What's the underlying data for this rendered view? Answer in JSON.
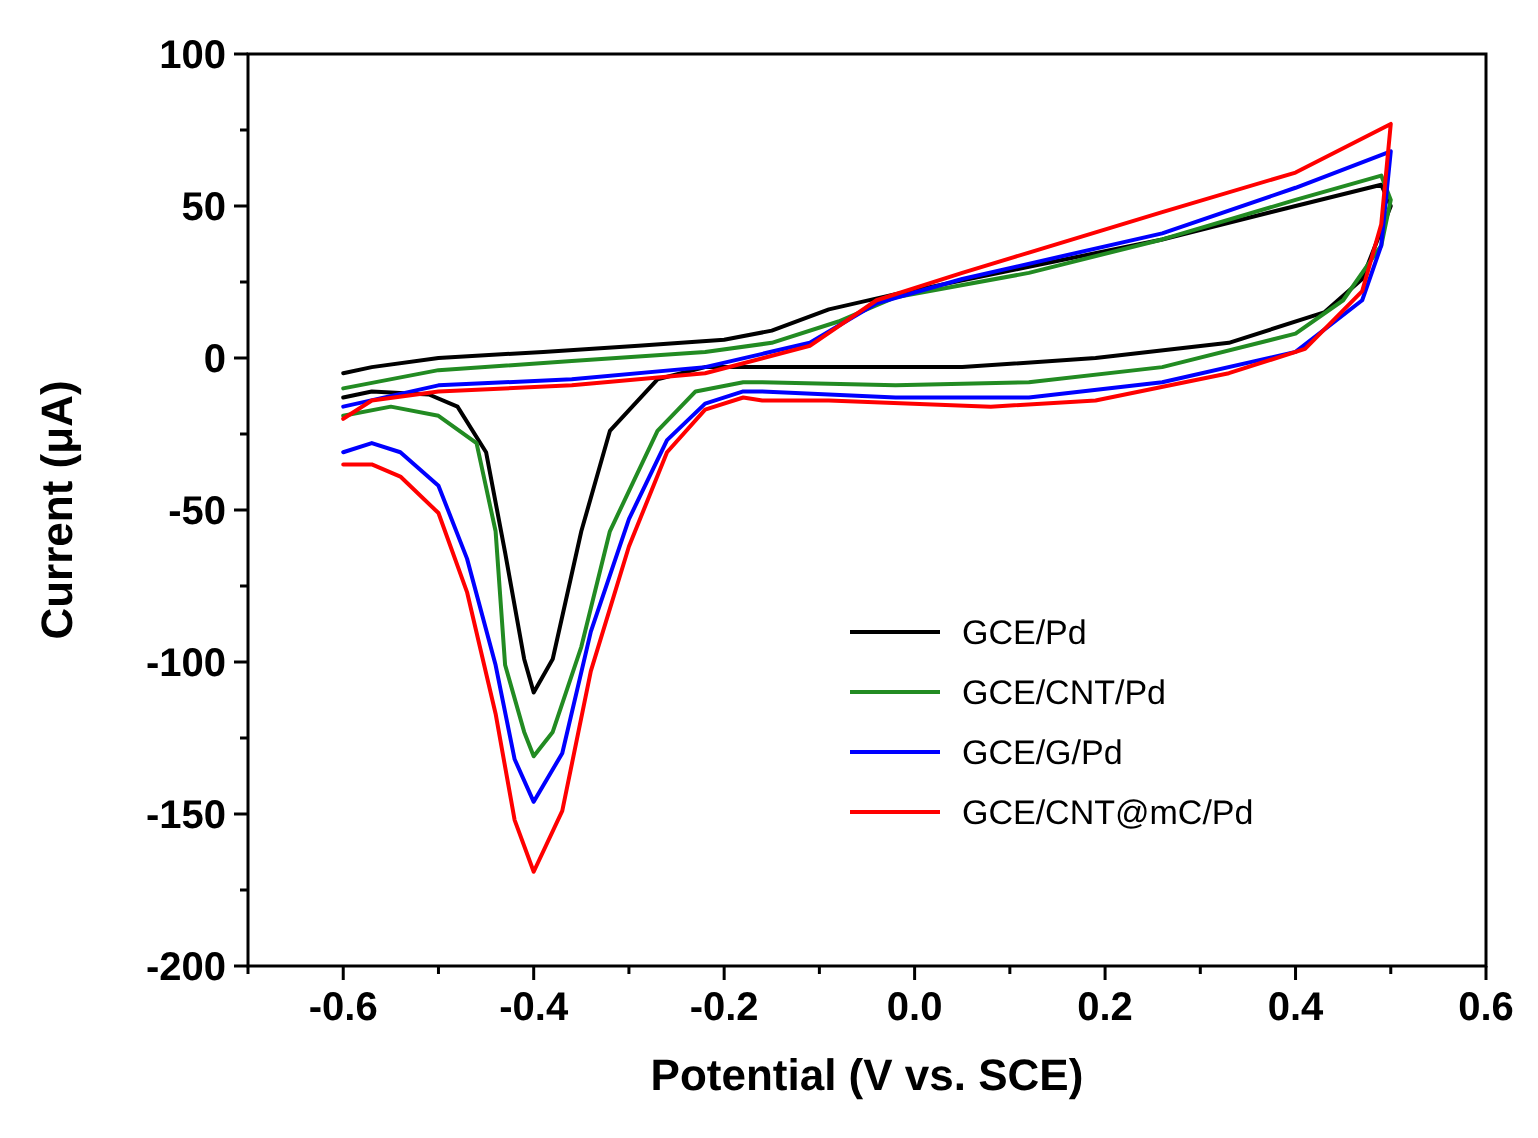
{
  "chart_data": {
    "type": "line",
    "xlabel": "Potential (V vs. SCE)",
    "ylabel": "Current (μA)",
    "xlim": [
      -0.7,
      0.6
    ],
    "xticks": [
      {
        "value": -0.7,
        "label": null
      },
      -0.6,
      {
        "value": -0.5,
        "label": null
      },
      -0.4,
      {
        "value": -0.3,
        "label": null
      },
      -0.2,
      {
        "value": -0.1,
        "label": null
      },
      {
        "value": 0,
        "label": "0.0"
      },
      {
        "value": 0.1,
        "label": null
      },
      0.2,
      {
        "value": 0.3,
        "label": null
      },
      0.4,
      {
        "value": 0.5,
        "label": null
      },
      0.6
    ],
    "ylim": [
      -200,
      100
    ],
    "yticks": [
      -200,
      {
        "value": -175,
        "label": null
      },
      -150,
      {
        "value": -125,
        "label": null
      },
      -100,
      {
        "value": -75,
        "label": null
      },
      -50,
      {
        "value": -25,
        "label": null
      },
      0,
      {
        "value": 25,
        "label": null
      },
      50,
      {
        "value": 75,
        "label": null
      },
      100
    ],
    "grid": false,
    "legend": "bottom right",
    "marker": "none",
    "line_style": "solid",
    "series": [
      {
        "name": "GCE/Pd",
        "color": "#000000",
        "x": [
          -0.6,
          -0.57,
          -0.5,
          -0.39,
          -0.29,
          -0.2,
          -0.15,
          -0.09,
          -0.02,
          0.12,
          0.26,
          0.4,
          0.49,
          0.5,
          0.47,
          0.43,
          0.33,
          0.19,
          0.05,
          -0.16,
          -0.22,
          -0.27,
          -0.32,
          -0.35,
          -0.38,
          -0.4,
          -0.41,
          -0.43,
          -0.45,
          -0.48,
          -0.51,
          -0.57,
          -0.6
        ],
        "values": [
          -5,
          -3,
          0,
          2,
          4,
          6,
          9,
          16,
          21,
          30,
          39,
          50,
          57,
          50,
          26,
          15,
          5,
          0,
          -3,
          -3,
          -3,
          -7,
          -24,
          -57,
          -99,
          -110,
          -99,
          -64,
          -31,
          -16,
          -12,
          -11,
          -13
        ]
      },
      {
        "name": "GCE/CNT/Pd",
        "color": "#228b22",
        "x": [
          -0.6,
          -0.5,
          -0.36,
          -0.22,
          -0.15,
          -0.08,
          -0.02,
          0.12,
          0.26,
          0.4,
          0.49,
          0.5,
          0.49,
          0.45,
          0.4,
          0.26,
          0.12,
          -0.02,
          -0.16,
          -0.18,
          -0.23,
          -0.27,
          -0.32,
          -0.35,
          -0.38,
          -0.4,
          -0.41,
          -0.43,
          -0.44,
          -0.46,
          -0.5,
          -0.55,
          -0.6
        ],
        "values": [
          -10,
          -4,
          -1,
          2,
          5,
          12,
          20,
          28,
          39,
          52,
          60,
          52,
          37,
          19,
          8,
          -3,
          -8,
          -9,
          -8,
          -8,
          -11,
          -24,
          -57,
          -95,
          -123,
          -131,
          -123,
          -101,
          -57,
          -28,
          -19,
          -16,
          -19
        ]
      },
      {
        "name": "GCE/G/Pd",
        "color": "#0000ff",
        "x": [
          -0.6,
          -0.5,
          -0.36,
          -0.22,
          -0.11,
          -0.04,
          0.05,
          0.26,
          0.4,
          0.5,
          0.49,
          0.47,
          0.4,
          0.26,
          0.12,
          -0.02,
          -0.16,
          -0.18,
          -0.22,
          -0.26,
          -0.3,
          -0.34,
          -0.37,
          -0.4,
          -0.42,
          -0.44,
          -0.47,
          -0.5,
          -0.54,
          -0.57,
          -0.6
        ],
        "values": [
          -16,
          -9,
          -7,
          -3,
          5,
          18,
          26,
          41,
          56,
          68,
          37,
          19,
          2,
          -8,
          -13,
          -13,
          -11,
          -11,
          -15,
          -27,
          -53,
          -90,
          -130,
          -146,
          -132,
          -101,
          -66,
          -42,
          -31,
          -28,
          -31
        ]
      },
      {
        "name": "GCE/CNT@mC/Pd",
        "color": "#ff0000",
        "x": [
          -0.6,
          -0.57,
          -0.5,
          -0.36,
          -0.22,
          -0.11,
          -0.04,
          0.05,
          0.26,
          0.4,
          0.5,
          0.49,
          0.47,
          0.41,
          0.33,
          0.19,
          0.08,
          -0.09,
          -0.16,
          -0.18,
          -0.22,
          -0.26,
          -0.3,
          -0.34,
          -0.37,
          -0.4,
          -0.42,
          -0.44,
          -0.47,
          -0.5,
          -0.54,
          -0.57,
          -0.6
        ],
        "values": [
          -20,
          -14,
          -11,
          -9,
          -5,
          4,
          19,
          28,
          48,
          61,
          77,
          44,
          22,
          3,
          -5,
          -14,
          -16,
          -14,
          -14,
          -13,
          -17,
          -31,
          -62,
          -103,
          -149,
          -169,
          -152,
          -117,
          -77,
          -51,
          -39,
          -35,
          -35
        ]
      }
    ]
  }
}
